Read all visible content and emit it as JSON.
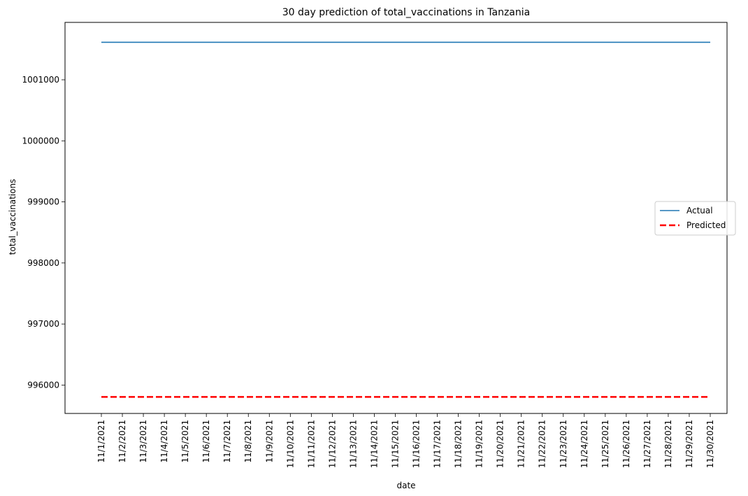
{
  "chart_data": {
    "type": "line",
    "title": "30 day prediction of total_vaccinations in Tanzania",
    "xlabel": "date",
    "ylabel": "total_vaccinations",
    "x": [
      "11/1/2021",
      "11/2/2021",
      "11/3/2021",
      "11/4/2021",
      "11/5/2021",
      "11/6/2021",
      "11/7/2021",
      "11/8/2021",
      "11/9/2021",
      "11/10/2021",
      "11/11/2021",
      "11/12/2021",
      "11/13/2021",
      "11/14/2021",
      "11/15/2021",
      "11/16/2021",
      "11/17/2021",
      "11/18/2021",
      "11/19/2021",
      "11/20/2021",
      "11/21/2021",
      "11/22/2021",
      "11/23/2021",
      "11/24/2021",
      "11/25/2021",
      "11/26/2021",
      "11/27/2021",
      "11/28/2021",
      "11/29/2021",
      "11/30/2021"
    ],
    "yticks": [
      996000,
      997000,
      998000,
      999000,
      1000000,
      1001000
    ],
    "ylim": [
      995535,
      1001940
    ],
    "grid": false,
    "legend_position": "center-right",
    "series": [
      {
        "name": "Actual",
        "color": "#1f77b4",
        "style": "solid",
        "values": [
          1001615,
          1001615,
          1001615,
          1001615,
          1001615,
          1001615,
          1001615,
          1001615,
          1001615,
          1001615,
          1001615,
          1001615,
          1001615,
          1001615,
          1001615,
          1001615,
          1001615,
          1001615,
          1001615,
          1001615,
          1001615,
          1001615,
          1001615,
          1001615,
          1001615,
          1001615,
          1001615,
          1001615,
          1001615,
          1001615
        ]
      },
      {
        "name": "Predicted",
        "color": "#ff0000",
        "style": "dashed",
        "values": [
          995805,
          995805,
          995805,
          995805,
          995805,
          995805,
          995805,
          995805,
          995805,
          995805,
          995805,
          995805,
          995805,
          995805,
          995805,
          995805,
          995805,
          995805,
          995805,
          995805,
          995805,
          995805,
          995805,
          995805,
          995805,
          995805,
          995805,
          995805,
          995805,
          995805
        ]
      }
    ]
  }
}
